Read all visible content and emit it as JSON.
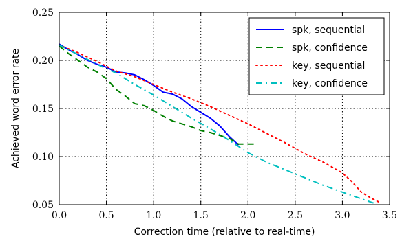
{
  "chart_data": {
    "type": "line",
    "title": "",
    "xlabel": "Correction time (relative to real-time)",
    "ylabel": "Achieved word error rate",
    "xlim": [
      0.0,
      3.5
    ],
    "ylim": [
      0.05,
      0.25
    ],
    "xticks": [
      "0.0",
      "0.5",
      "1.0",
      "1.5",
      "2.0",
      "2.5",
      "3.0",
      "3.5"
    ],
    "yticks": [
      "0.05",
      "0.10",
      "0.15",
      "0.20",
      "0.25"
    ],
    "grid": true,
    "legend_position": "top-right",
    "series": [
      {
        "name": "spk, sequential",
        "color": "#0000ff",
        "style": "solid",
        "x": [
          0.0,
          0.1,
          0.2,
          0.3,
          0.4,
          0.5,
          0.6,
          0.7,
          0.8,
          0.9,
          1.0,
          1.1,
          1.2,
          1.3,
          1.4,
          1.5,
          1.6,
          1.7,
          1.8,
          1.9
        ],
        "y": [
          0.217,
          0.211,
          0.206,
          0.2,
          0.196,
          0.193,
          0.188,
          0.187,
          0.185,
          0.18,
          0.174,
          0.167,
          0.165,
          0.16,
          0.152,
          0.146,
          0.14,
          0.132,
          0.121,
          0.112
        ]
      },
      {
        "name": "spk, confidence",
        "color": "#008000",
        "style": "dashed",
        "x": [
          0.0,
          0.1,
          0.2,
          0.3,
          0.4,
          0.5,
          0.6,
          0.7,
          0.8,
          0.9,
          1.0,
          1.1,
          1.2,
          1.3,
          1.4,
          1.5,
          1.6,
          1.7,
          1.8,
          1.9,
          2.0,
          2.1
        ],
        "y": [
          0.215,
          0.207,
          0.2,
          0.193,
          0.188,
          0.181,
          0.17,
          0.163,
          0.155,
          0.153,
          0.148,
          0.142,
          0.137,
          0.134,
          0.131,
          0.127,
          0.125,
          0.122,
          0.119,
          0.113,
          0.113,
          0.113
        ]
      },
      {
        "name": "key, sequential",
        "color": "#ff0000",
        "style": "dotted",
        "x": [
          0.0,
          0.2,
          0.4,
          0.6,
          0.8,
          1.0,
          1.2,
          1.4,
          1.6,
          1.8,
          2.0,
          2.2,
          2.4,
          2.6,
          2.8,
          3.0,
          3.1,
          3.2,
          3.3,
          3.4
        ],
        "y": [
          0.216,
          0.208,
          0.199,
          0.189,
          0.183,
          0.175,
          0.167,
          0.16,
          0.152,
          0.143,
          0.134,
          0.124,
          0.114,
          0.103,
          0.094,
          0.083,
          0.074,
          0.063,
          0.057,
          0.052
        ]
      },
      {
        "name": "key, confidence",
        "color": "#00bfbf",
        "style": "dashdot",
        "x": [
          0.0,
          0.2,
          0.4,
          0.6,
          0.8,
          1.0,
          1.2,
          1.4,
          1.6,
          1.8,
          2.0,
          2.2,
          2.4,
          2.6,
          2.8,
          3.0,
          3.2,
          3.35
        ],
        "y": [
          0.216,
          0.206,
          0.196,
          0.187,
          0.175,
          0.164,
          0.152,
          0.14,
          0.129,
          0.117,
          0.104,
          0.094,
          0.086,
          0.078,
          0.07,
          0.063,
          0.056,
          0.051
        ]
      }
    ]
  }
}
